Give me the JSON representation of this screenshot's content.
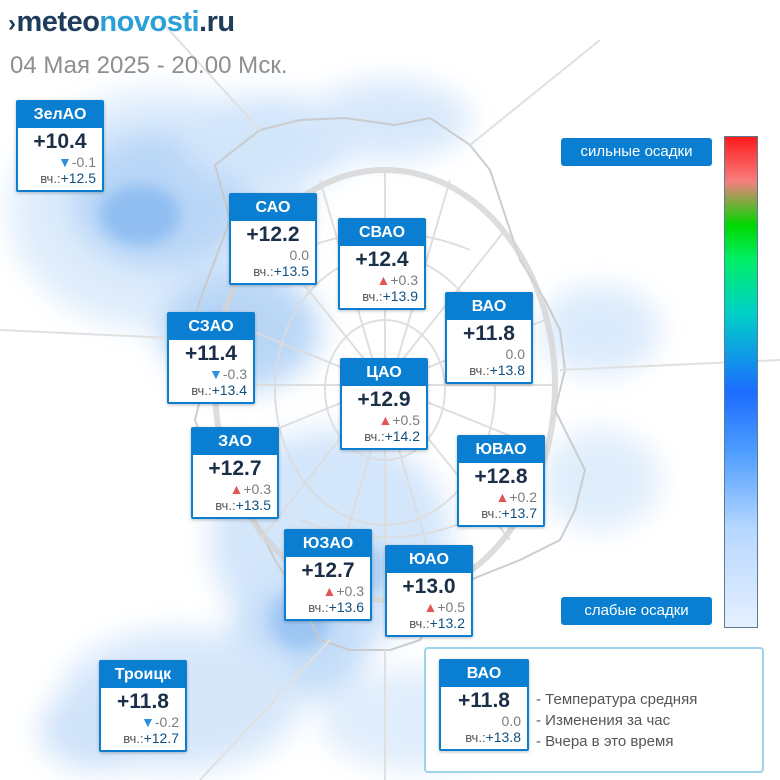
{
  "header": {
    "logo_part1": "meteo",
    "logo_part2": "novosti",
    "logo_part3": ".ru",
    "subtitle": "04 Мая 2025 - 20.00 Мск."
  },
  "scale": {
    "top_label": "сильные осадки",
    "bottom_label": "слабые осадки"
  },
  "districts": [
    {
      "name": "ЗелАО",
      "temp": "+10.4",
      "change": "-0.1",
      "trend": "down",
      "yesterday_label": "вч.:",
      "yesterday": "+12.5"
    },
    {
      "name": "САО",
      "temp": "+12.2",
      "change": "0.0",
      "trend": "none",
      "yesterday_label": "вч.:",
      "yesterday": "+13.5"
    },
    {
      "name": "СВАО",
      "temp": "+12.4",
      "change": "+0.3",
      "trend": "up",
      "yesterday_label": "вч.:",
      "yesterday": "+13.9"
    },
    {
      "name": "ВАО",
      "temp": "+11.8",
      "change": "0.0",
      "trend": "none",
      "yesterday_label": "вч.:",
      "yesterday": "+13.8"
    },
    {
      "name": "СЗАО",
      "temp": "+11.4",
      "change": "-0.3",
      "trend": "down",
      "yesterday_label": "вч.:",
      "yesterday": "+13.4"
    },
    {
      "name": "ЦАО",
      "temp": "+12.9",
      "change": "+0.5",
      "trend": "up",
      "yesterday_label": "вч.:",
      "yesterday": "+14.2"
    },
    {
      "name": "ЗАО",
      "temp": "+12.7",
      "change": "+0.3",
      "trend": "up",
      "yesterday_label": "вч.:",
      "yesterday": "+13.5"
    },
    {
      "name": "ЮВАО",
      "temp": "+12.8",
      "change": "+0.2",
      "trend": "up",
      "yesterday_label": "вч.:",
      "yesterday": "+13.7"
    },
    {
      "name": "ЮЗАО",
      "temp": "+12.7",
      "change": "+0.3",
      "trend": "up",
      "yesterday_label": "вч.:",
      "yesterday": "+13.6"
    },
    {
      "name": "ЮАО",
      "temp": "+13.0",
      "change": "+0.5",
      "trend": "up",
      "yesterday_label": "вч.:",
      "yesterday": "+13.2"
    },
    {
      "name": "Троицк",
      "temp": "+11.8",
      "change": "-0.2",
      "trend": "down",
      "yesterday_label": "вч.:",
      "yesterday": "+12.7"
    }
  ],
  "legend": {
    "sample": {
      "name": "ВАО",
      "temp": "+11.8",
      "change": "0.0",
      "yesterday_label": "вч.:",
      "yesterday": "+13.8"
    },
    "items": [
      "- Температура средняя",
      "- Изменения за час",
      "- Вчера в это время"
    ]
  },
  "colors": {
    "card_header": "#0a7fd1",
    "up_arrow": "#e25555",
    "down_arrow": "#2e8fe0",
    "precip_light": "#bcd9f7"
  },
  "icons": {
    "up": "triangle-up-icon",
    "down": "triangle-down-icon"
  }
}
